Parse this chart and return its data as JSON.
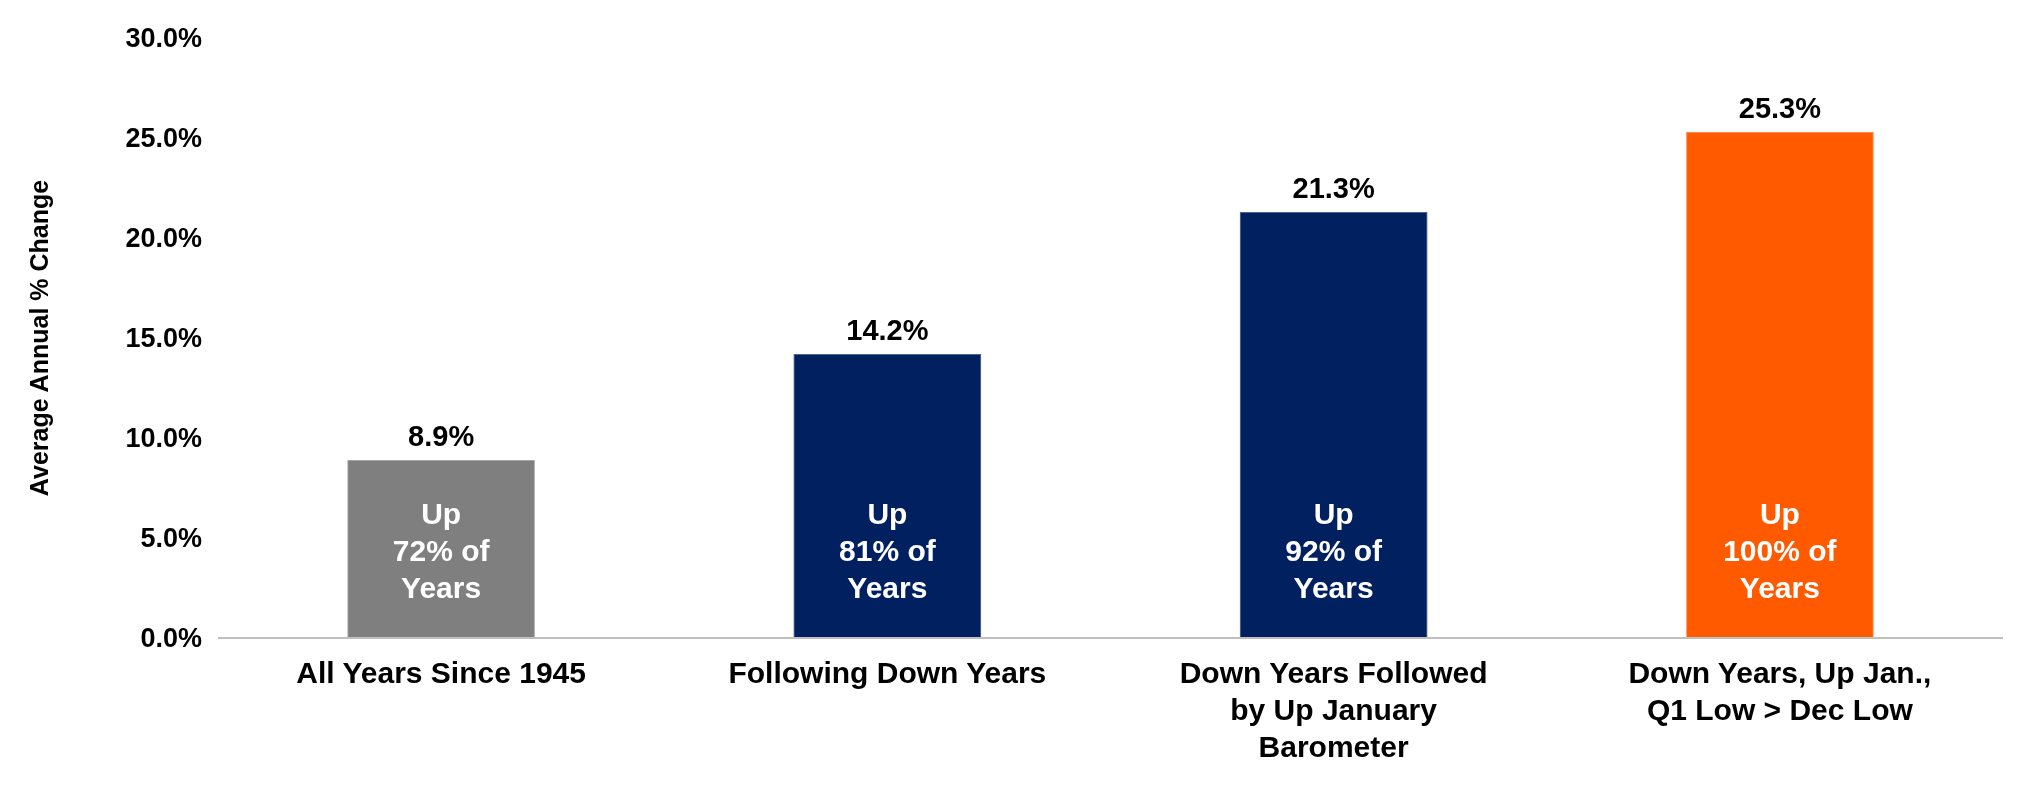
{
  "chart_data": {
    "type": "bar",
    "ylabel": "Average Annual % Change",
    "categories": [
      "All Years Since 1945",
      "Following Down Years",
      "Down Years Followed by Up January Barometer",
      "Down Years, Up Jan., Q1 Low > Dec Low"
    ],
    "values": [
      8.9,
      14.2,
      21.3,
      25.3
    ],
    "colors": [
      "#7f7f7f",
      "#002060",
      "#002060",
      "#ff5a00"
    ],
    "value_labels": [
      "8.9%",
      "14.2%",
      "21.3%",
      "25.3%"
    ],
    "ylim": [
      0,
      30
    ],
    "yticks": [
      {
        "value": 0,
        "label": "0.0%"
      },
      {
        "value": 5,
        "label": "5.0%"
      },
      {
        "value": 10,
        "label": "10.0%"
      },
      {
        "value": 15,
        "label": "15.0%"
      },
      {
        "value": 20,
        "label": "20.0%"
      },
      {
        "value": 25,
        "label": "25.0%"
      },
      {
        "value": 30,
        "label": "30.0%"
      }
    ],
    "grid": false,
    "annotations": [
      "Up\n72% of\nYears",
      "Up\n81% of\nYears",
      "Up\n92% of\nYears",
      "Up\n100% of\nYears"
    ]
  }
}
